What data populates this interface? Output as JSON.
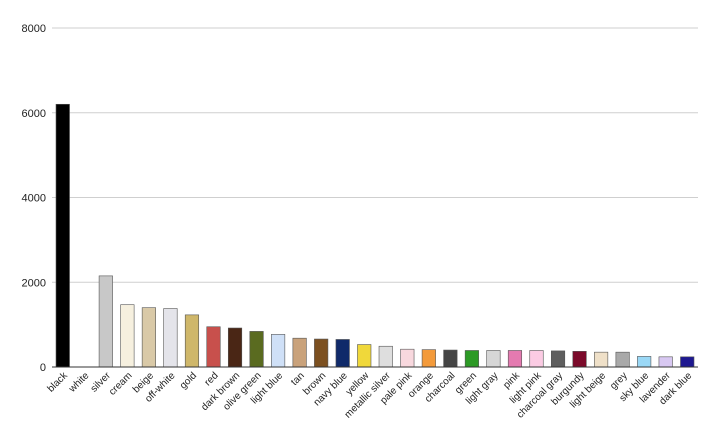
{
  "chart_data": {
    "type": "bar",
    "title": "",
    "xlabel": "",
    "ylabel": "",
    "ylim": [
      0,
      8000
    ],
    "yticks": [
      0,
      2000,
      4000,
      6000,
      8000
    ],
    "grid": true,
    "categories": [
      "black",
      "white",
      "silver",
      "cream",
      "beige",
      "off-white",
      "gold",
      "red",
      "dark brown",
      "olive green",
      "light blue",
      "tan",
      "brown",
      "navy blue",
      "yellow",
      "metallic silver",
      "pale pink",
      "orange",
      "charcoal",
      "green",
      "light gray",
      "pink",
      "light pink",
      "charcoal gray",
      "burgundy",
      "light beige",
      "grey",
      "sky blue",
      "lavender",
      "dark blue"
    ],
    "values": [
      6200,
      0,
      2150,
      1470,
      1400,
      1380,
      1230,
      950,
      920,
      840,
      770,
      680,
      660,
      650,
      530,
      490,
      420,
      410,
      400,
      390,
      390,
      390,
      390,
      380,
      370,
      350,
      350,
      250,
      240,
      240
    ],
    "colors": [
      "#000000",
      "#ffffff",
      "#c8c8c8",
      "#f6f0df",
      "#d9c9a7",
      "#e4e4ea",
      "#cfb76a",
      "#c8504c",
      "#4a2615",
      "#5a6b20",
      "#cfe0f7",
      "#c9a27b",
      "#7c5020",
      "#102a6a",
      "#f0d83a",
      "#dedede",
      "#f8d8de",
      "#f39a3a",
      "#454545",
      "#2c9a25",
      "#d6d6d6",
      "#e47ab0",
      "#fbcbe3",
      "#5e5e5e",
      "#7b0a2a",
      "#efe0c8",
      "#a9a9a9",
      "#9ad8f6",
      "#d8c8f2",
      "#1e1890"
    ]
  }
}
